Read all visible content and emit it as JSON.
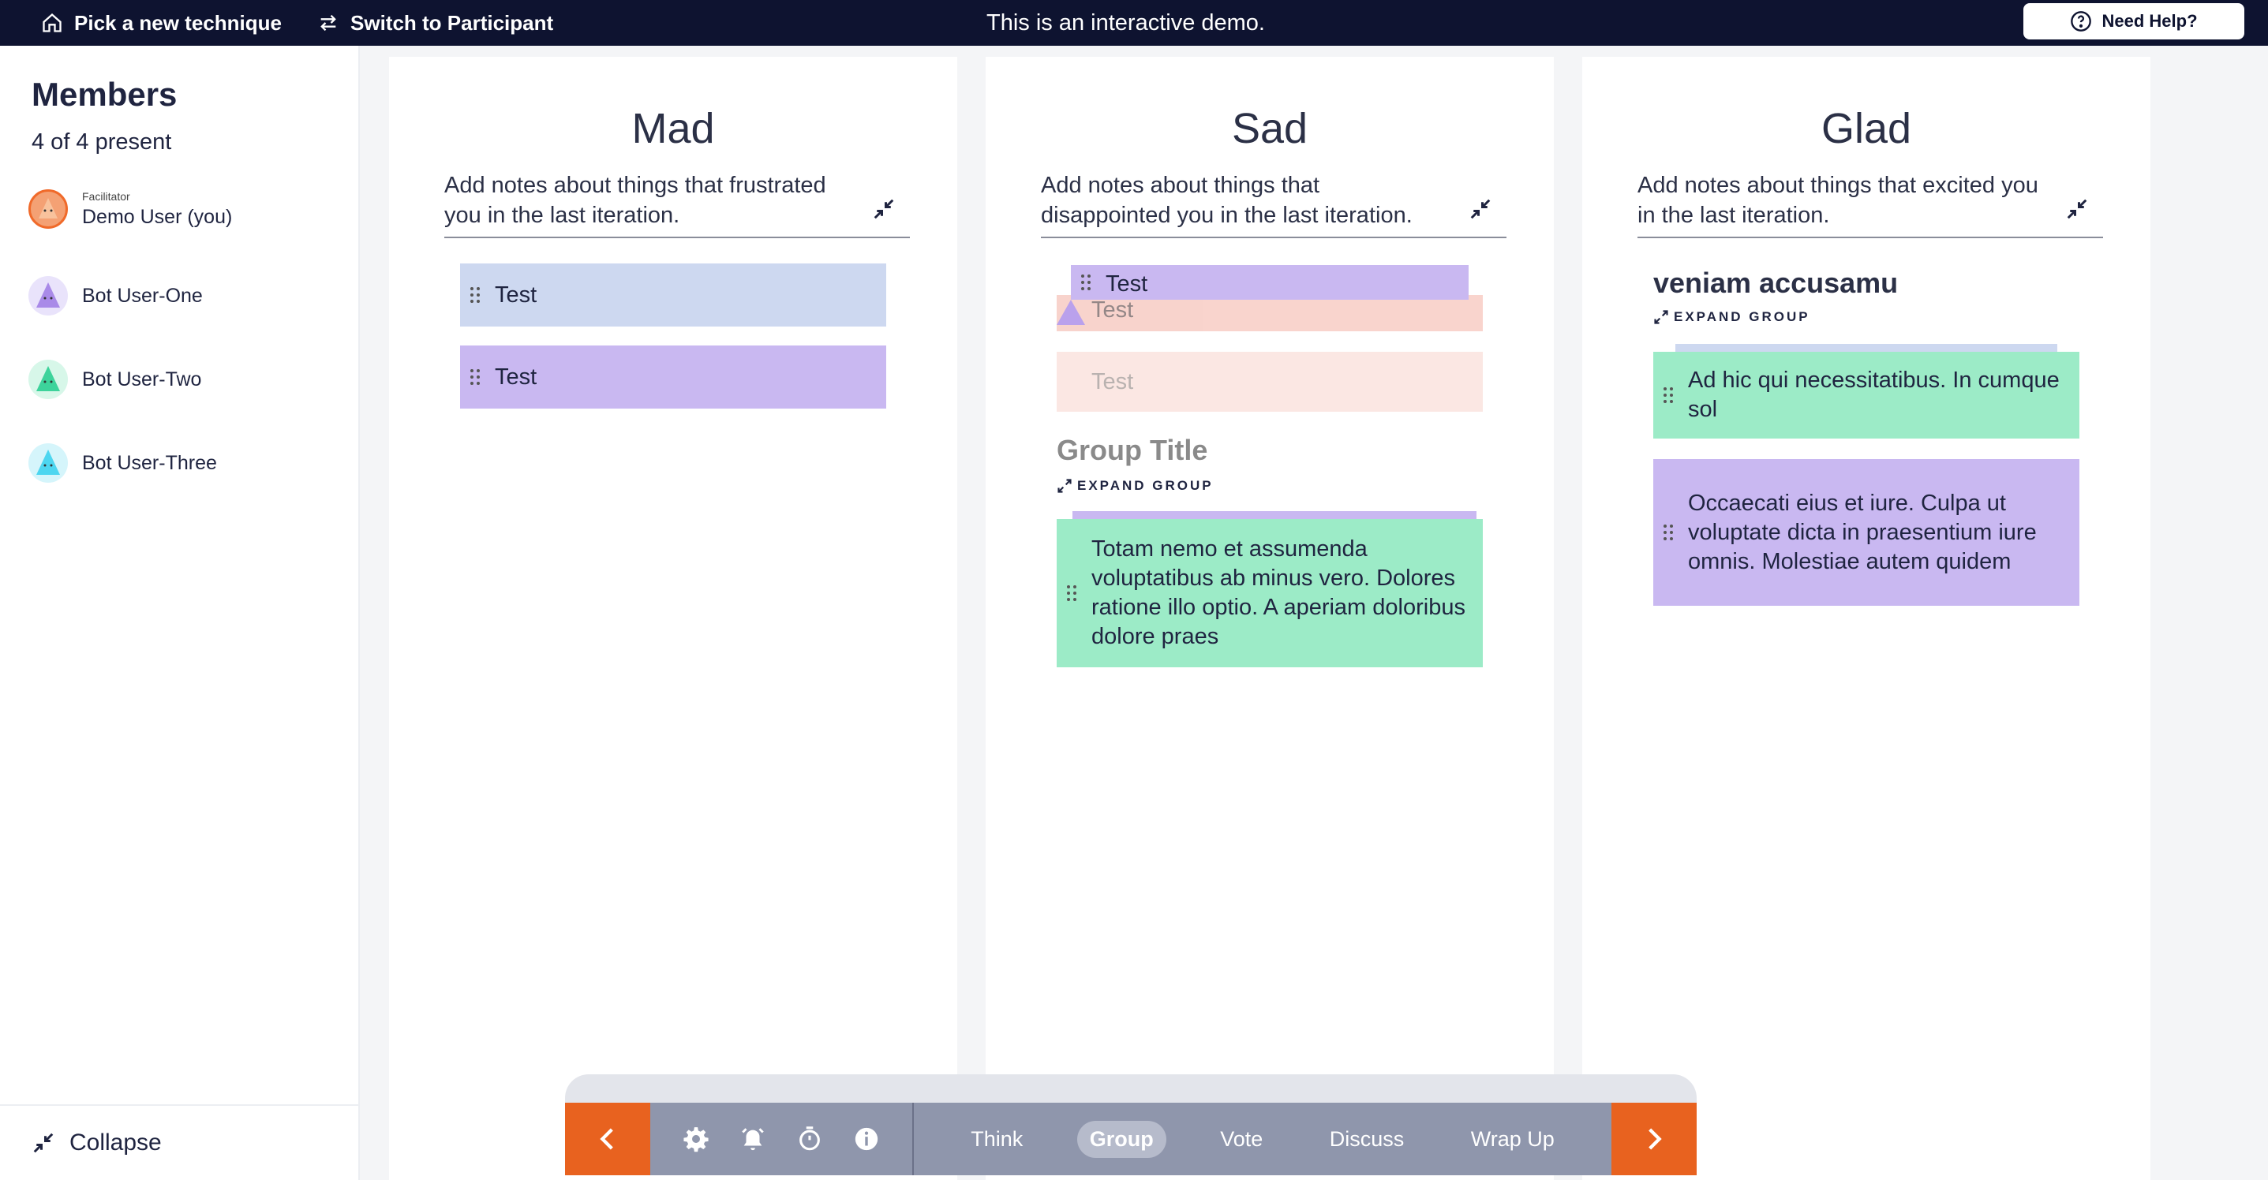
{
  "topbar": {
    "pick_technique": "Pick a new technique",
    "switch_participant": "Switch to Participant",
    "demo_notice": "This is an interactive demo.",
    "help": "Need Help?"
  },
  "sidebar": {
    "title": "Members",
    "present": "4 of 4 present",
    "members": [
      {
        "role": "Facilitator",
        "name": "Demo User (you)",
        "color": "#f4a174"
      },
      {
        "role": "",
        "name": "Bot User-One",
        "color": "#a98ae8"
      },
      {
        "role": "",
        "name": "Bot User-Two",
        "color": "#3dd39b"
      },
      {
        "role": "",
        "name": "Bot User-Three",
        "color": "#4dd6f0"
      }
    ],
    "collapse": "Collapse"
  },
  "columns": [
    {
      "title": "Mad",
      "desc": "Add notes about things that frustrated you in the last iteration.",
      "cards": [
        "Test",
        "Test"
      ]
    },
    {
      "title": "Sad",
      "desc": "Add notes about things that disappointed you in the last iteration.",
      "stack_cards": [
        "Test",
        "Test",
        "Test"
      ],
      "group": {
        "title": "Group Title",
        "expand": "EXPAND GROUP",
        "card": "Totam nemo et assumenda voluptatibus ab minus vero. Dolores ratione illo optio. A aperiam doloribus dolore praes"
      }
    },
    {
      "title": "Glad",
      "desc": "Add notes about things that excited you in the last iteration.",
      "group": {
        "title": "veniam accusamu",
        "expand": "EXPAND GROUP",
        "cards": [
          "Ad hic qui necessitatibus. In cumque sol",
          "Occaecati eius et iure. Culpa ut voluptate dicta in praesentium iure omnis. Molestiae autem quidem"
        ]
      }
    }
  ],
  "toolbar": {
    "steps": [
      "Think",
      "Group",
      "Vote",
      "Discuss",
      "Wrap Up"
    ],
    "active_step": "Group",
    "icons": [
      "gear-icon",
      "alarm-icon",
      "timer-icon",
      "info-icon"
    ],
    "accent": "#e8621f"
  }
}
